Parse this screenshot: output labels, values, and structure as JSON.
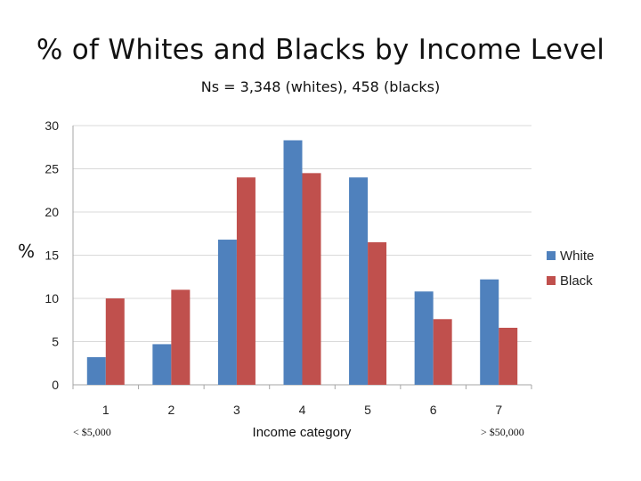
{
  "title": "% of Whites and Blacks by Income Level",
  "subtitle": "Ns = 3,348 (whites), 458 (blacks)",
  "y_side_label": "%",
  "left_note": "< $5,000",
  "right_note": "> $50,000",
  "colors": {
    "white": "#4F81BD",
    "black": "#C0504D",
    "grid": "#d9d9d9",
    "axis": "#a6a6a6"
  },
  "chart_data": {
    "type": "bar",
    "categories": [
      "1",
      "2",
      "3",
      "4",
      "5",
      "6",
      "7"
    ],
    "series": [
      {
        "name": "White",
        "values": [
          3.2,
          4.7,
          16.8,
          28.3,
          24.0,
          10.8,
          12.2
        ]
      },
      {
        "name": "Black",
        "values": [
          10.0,
          11.0,
          24.0,
          24.5,
          16.5,
          7.6,
          6.6
        ]
      }
    ],
    "title": "% of Whites and Blacks by Income Level",
    "subtitle": "Ns = 3,348 (whites), 458 (blacks)",
    "xlabel": "Income category",
    "ylabel": "%",
    "ylim": [
      0,
      30
    ],
    "yticks": [
      0,
      5,
      10,
      15,
      20,
      25,
      30
    ],
    "grid": true,
    "legend_position": "right"
  }
}
